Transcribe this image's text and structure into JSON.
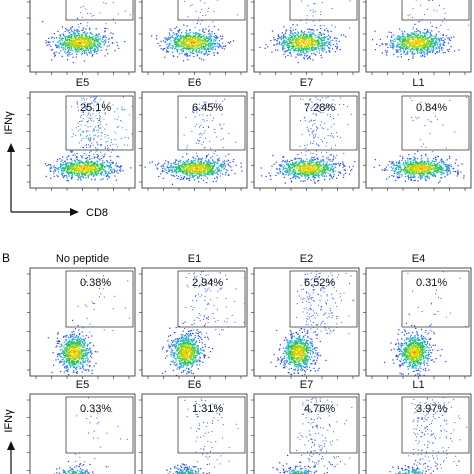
{
  "panel_a": {
    "title_rows": [
      {
        "panels": [
          {
            "title": "",
            "percent": ""
          },
          {
            "title": "",
            "percent": ""
          },
          {
            "title": "",
            "percent": ""
          },
          {
            "title": "",
            "percent": ""
          }
        ]
      },
      {
        "panels": [
          {
            "title": "E5",
            "percent": "25.1%",
            "upper_density": 1.0
          },
          {
            "title": "E6",
            "percent": "6.45%",
            "upper_density": 0.35
          },
          {
            "title": "E7",
            "percent": "7.28%",
            "upper_density": 0.55
          },
          {
            "title": "L1",
            "percent": "0.84%",
            "upper_density": 0.12
          }
        ]
      }
    ],
    "y_axis_label": "IFNγ",
    "x_axis_label": "CD8"
  },
  "panel_b": {
    "label": "B",
    "title_rows": [
      {
        "panels": [
          {
            "title": "No peptide",
            "percent": "0.38%",
            "upper_density": 0.12
          },
          {
            "title": "E1",
            "percent": "2.94%",
            "upper_density": 0.45
          },
          {
            "title": "E2",
            "percent": "6.52%",
            "upper_density": 0.75
          },
          {
            "title": "E4",
            "percent": "0.31%",
            "upper_density": 0.1
          }
        ]
      },
      {
        "panels": [
          {
            "title": "E5",
            "percent": "0.33%",
            "upper_density": 0.12
          },
          {
            "title": "E6",
            "percent": "1.31%",
            "upper_density": 0.3
          },
          {
            "title": "E7",
            "percent": "4.76%",
            "upper_density": 0.6
          },
          {
            "title": "L1",
            "percent": "3.97%",
            "upper_density": 0.7
          }
        ]
      }
    ],
    "y_axis_label": "IFNγ"
  }
}
